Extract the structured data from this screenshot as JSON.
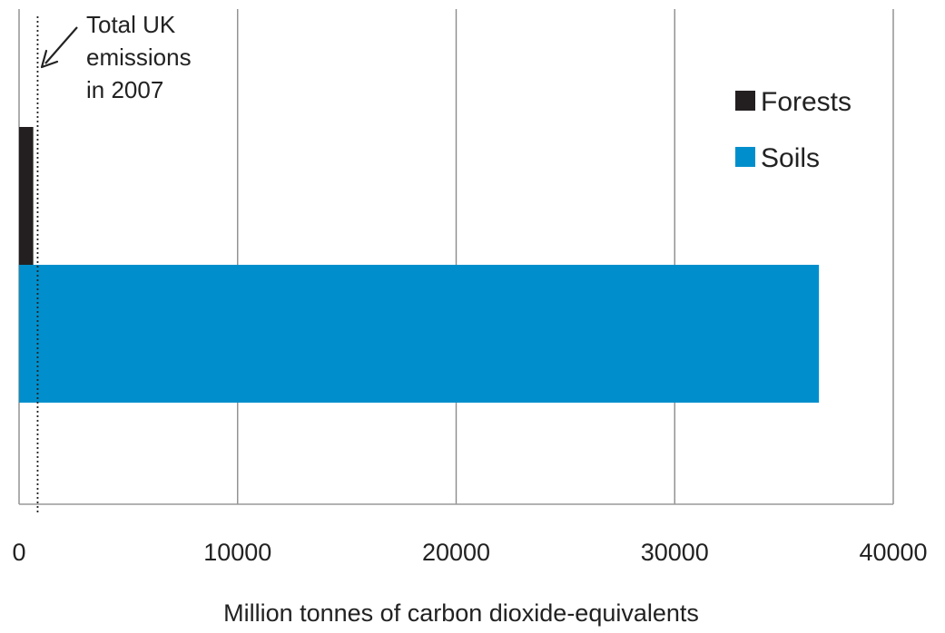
{
  "chart_data": {
    "type": "bar",
    "orientation": "horizontal",
    "title": "",
    "xlabel": "Million tonnes of carbon dioxide-equivalents",
    "ylabel": "",
    "xlim": [
      0,
      40000
    ],
    "xticks": [
      0,
      10000,
      20000,
      30000,
      40000
    ],
    "xtick_labels": [
      "0",
      "10000",
      "20000",
      "30000",
      "40000"
    ],
    "grid": "vertical",
    "legend_position": "top-right",
    "series": [
      {
        "name": "Forests",
        "value": 650,
        "color": "#231f20"
      },
      {
        "name": "Soils",
        "value": 36600,
        "color": "#008fcc"
      }
    ],
    "reference_line": {
      "value": 850,
      "style": "dotted",
      "annotation": [
        "Total UK",
        "emissions",
        "in 2007"
      ]
    }
  }
}
